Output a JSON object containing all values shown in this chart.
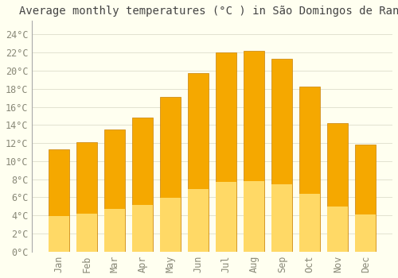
{
  "title": "Average monthly temperatures (°C ) in São Domingos de Rana",
  "months": [
    "Jan",
    "Feb",
    "Mar",
    "Apr",
    "May",
    "Jun",
    "Jul",
    "Aug",
    "Sep",
    "Oct",
    "Nov",
    "Dec"
  ],
  "values": [
    11.3,
    12.1,
    13.5,
    14.8,
    17.1,
    19.7,
    22.0,
    22.2,
    21.3,
    18.2,
    14.2,
    11.8
  ],
  "bar_color_dark": "#F5A800",
  "bar_color_light": "#FFD966",
  "bar_edge_color": "#C8820A",
  "background_color": "#FFFFF0",
  "grid_color": "#DDDDCC",
  "text_color": "#888877",
  "yticks": [
    0,
    2,
    4,
    6,
    8,
    10,
    12,
    14,
    16,
    18,
    20,
    22,
    24
  ],
  "ylim": [
    0,
    25.5
  ],
  "title_fontsize": 10,
  "tick_fontsize": 8.5,
  "bar_width": 0.75
}
